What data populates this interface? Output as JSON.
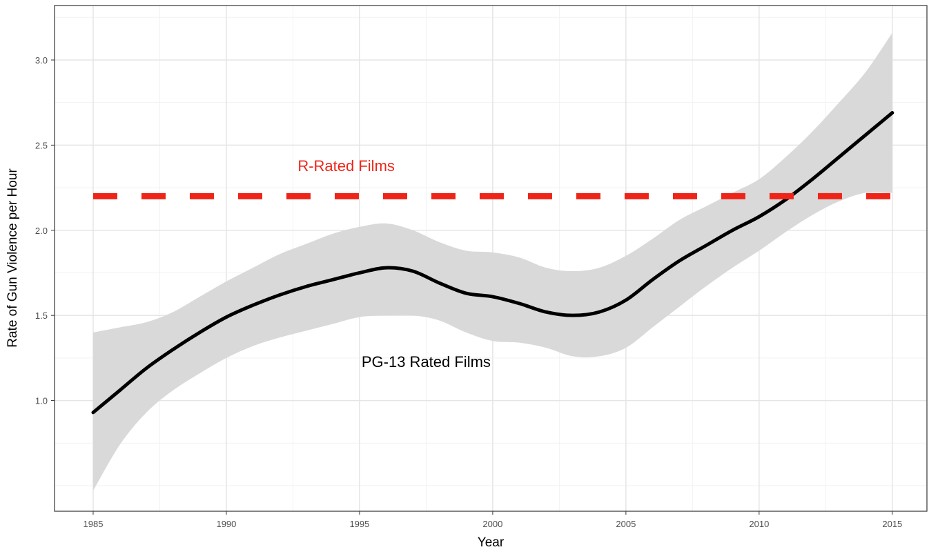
{
  "chart_data": {
    "type": "line",
    "title": "",
    "xlabel": "Year",
    "ylabel": "Rate of Gun Violence per Hour",
    "xlim": [
      1983.55,
      2016.3
    ],
    "ylim": [
      0.35,
      3.32
    ],
    "x_major_ticks": [
      1985,
      1990,
      1995,
      2000,
      2005,
      2010,
      2015
    ],
    "x_minor_ticks": [
      1987.5,
      1992.5,
      1997.5,
      2002.5,
      2007.5,
      2012.5
    ],
    "y_major_ticks": [
      1.0,
      1.5,
      2.0,
      2.5,
      3.0
    ],
    "y_minor_ticks": [
      0.5,
      0.75,
      1.25,
      1.75,
      2.25,
      2.75,
      3.25
    ],
    "x_tick_labels": [
      "1985",
      "1990",
      "1995",
      "2000",
      "2005",
      "2010",
      "2015"
    ],
    "y_tick_labels": [
      "1.0",
      "1.5",
      "2.0",
      "2.5",
      "3.0"
    ],
    "grid": true,
    "legend": "none",
    "series": [
      {
        "name": "PG-13 Rated Films",
        "style": "solid",
        "color": "#000000",
        "x": [
          1985,
          1986,
          1987,
          1988,
          1989,
          1990,
          1991,
          1992,
          1993,
          1994,
          1995,
          1996,
          1997,
          1998,
          1999,
          2000,
          2001,
          2002,
          2003,
          2004,
          2005,
          2006,
          2007,
          2008,
          2009,
          2010,
          2011,
          2012,
          2013,
          2014,
          2015
        ],
        "y": [
          0.93,
          1.06,
          1.19,
          1.3,
          1.4,
          1.49,
          1.56,
          1.62,
          1.67,
          1.71,
          1.75,
          1.78,
          1.76,
          1.69,
          1.63,
          1.61,
          1.57,
          1.52,
          1.5,
          1.52,
          1.59,
          1.71,
          1.82,
          1.91,
          2.0,
          2.08,
          2.18,
          2.3,
          2.43,
          2.56,
          2.69
        ],
        "ci_lower": [
          0.47,
          0.74,
          0.93,
          1.06,
          1.16,
          1.25,
          1.32,
          1.37,
          1.41,
          1.45,
          1.49,
          1.5,
          1.5,
          1.47,
          1.4,
          1.35,
          1.34,
          1.31,
          1.26,
          1.26,
          1.31,
          1.43,
          1.55,
          1.67,
          1.78,
          1.88,
          1.99,
          2.09,
          2.17,
          2.22,
          2.22
        ],
        "ci_upper": [
          1.4,
          1.43,
          1.46,
          1.52,
          1.61,
          1.7,
          1.78,
          1.86,
          1.92,
          1.98,
          2.02,
          2.04,
          2.0,
          1.93,
          1.88,
          1.87,
          1.84,
          1.78,
          1.76,
          1.78,
          1.85,
          1.95,
          2.06,
          2.14,
          2.22,
          2.3,
          2.43,
          2.58,
          2.75,
          2.93,
          3.16
        ]
      },
      {
        "name": "R-Rated Films",
        "style": "dashed",
        "color": "#ee2418",
        "x": [
          1985,
          2015
        ],
        "y": [
          2.2,
          2.2
        ]
      }
    ],
    "annotations": [
      {
        "text": "R-Rated Films",
        "x": 1994.5,
        "y": 2.38,
        "color": "#ee2418"
      },
      {
        "text": "PG-13 Rated Films",
        "x": 1997.5,
        "y": 1.23,
        "color": "#000000"
      }
    ]
  }
}
